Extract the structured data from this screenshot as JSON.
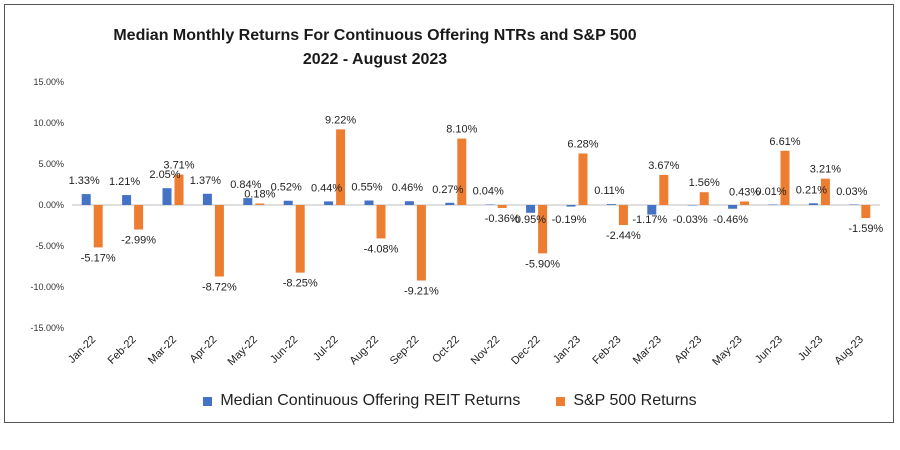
{
  "chart_data": {
    "type": "bar",
    "title": "Median Monthly Returns For Continuous Offering NTRs and S&P 500",
    "subtitle": "2022 - August 2023",
    "categories": [
      "Jan-22",
      "Feb-22",
      "Mar-22",
      "Apr-22",
      "May-22",
      "Jun-22",
      "Jul-22",
      "Aug-22",
      "Sep-22",
      "Oct-22",
      "Nov-22",
      "Dec-22",
      "Jan-23",
      "Feb-23",
      "Mar-23",
      "Apr-23",
      "May-23",
      "Jun-23",
      "Jul-23",
      "Aug-23"
    ],
    "series": [
      {
        "name": "Median Continuous Offering REIT Returns",
        "color": "#4472C4",
        "values": [
          1.33,
          1.21,
          2.05,
          1.37,
          0.84,
          0.52,
          0.44,
          0.55,
          0.46,
          0.27,
          0.04,
          -0.95,
          -0.19,
          0.11,
          -1.17,
          -0.03,
          -0.46,
          0.01,
          0.21,
          0.03
        ],
        "labels": [
          "1.33%",
          "1.21%",
          "2.05%",
          "1.37%",
          "0.84%",
          "0.52%",
          "0.44%",
          "0.55%",
          "0.46%",
          "0.27%",
          "0.04%",
          "-0.95%",
          "-0.19%",
          "0.11%",
          "-1.17%",
          "-0.03%",
          "-0.46%",
          "0.01%",
          "0.21%",
          "0.03%"
        ]
      },
      {
        "name": "S&P 500 Returns",
        "color": "#ED7D31",
        "values": [
          -5.17,
          -2.99,
          3.71,
          -8.72,
          0.18,
          -8.25,
          9.22,
          -4.08,
          -9.21,
          8.1,
          -0.36,
          -5.9,
          6.28,
          -2.44,
          3.67,
          1.56,
          0.43,
          6.61,
          3.21,
          -1.59
        ],
        "labels": [
          "-5.17%",
          "-2.99%",
          "3.71%",
          "-8.72%",
          "0.18%",
          "-8.25%",
          "9.22%",
          "-4.08%",
          "-9.21%",
          "8.10%",
          "-0.36%",
          "-5.90%",
          "6.28%",
          "-2.44%",
          "3.67%",
          "1.56%",
          "0.43%",
          "6.61%",
          "3.21%",
          "-1.59%"
        ]
      }
    ],
    "yticks": [
      "-15.00%",
      "-10.00%",
      "-5.00%",
      "0.00%",
      "5.00%",
      "10.00%",
      "15.00%"
    ],
    "ylim": [
      -15,
      15
    ],
    "grid": false,
    "legend_position": "bottom"
  }
}
